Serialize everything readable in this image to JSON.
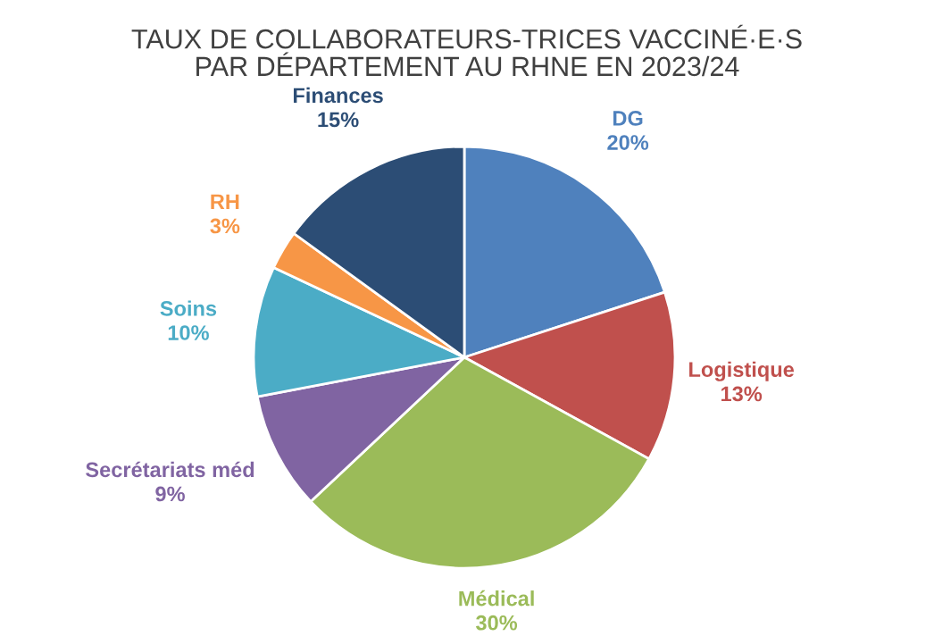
{
  "chart_data": {
    "type": "pie",
    "title": "TAUX DE COLLABORATEURS-TRICES VACCINÉ·E·S\nPAR DÉPARTEMENT AU RHNE EN 2023/24",
    "categories": [
      "DG",
      "Logistique",
      "Médical",
      "Secrétariats méd",
      "Soins",
      "RH",
      "Finances"
    ],
    "values": [
      20,
      13,
      30,
      9,
      10,
      3,
      15
    ],
    "value_labels": [
      "20%",
      "13%",
      "30%",
      "9%",
      "10%",
      "3%",
      "15%"
    ],
    "colors": [
      "#4f81bd",
      "#c0504d",
      "#9bbb59",
      "#8064a2",
      "#4bacc6",
      "#f79646",
      "#2c4d75"
    ],
    "legend": false
  }
}
